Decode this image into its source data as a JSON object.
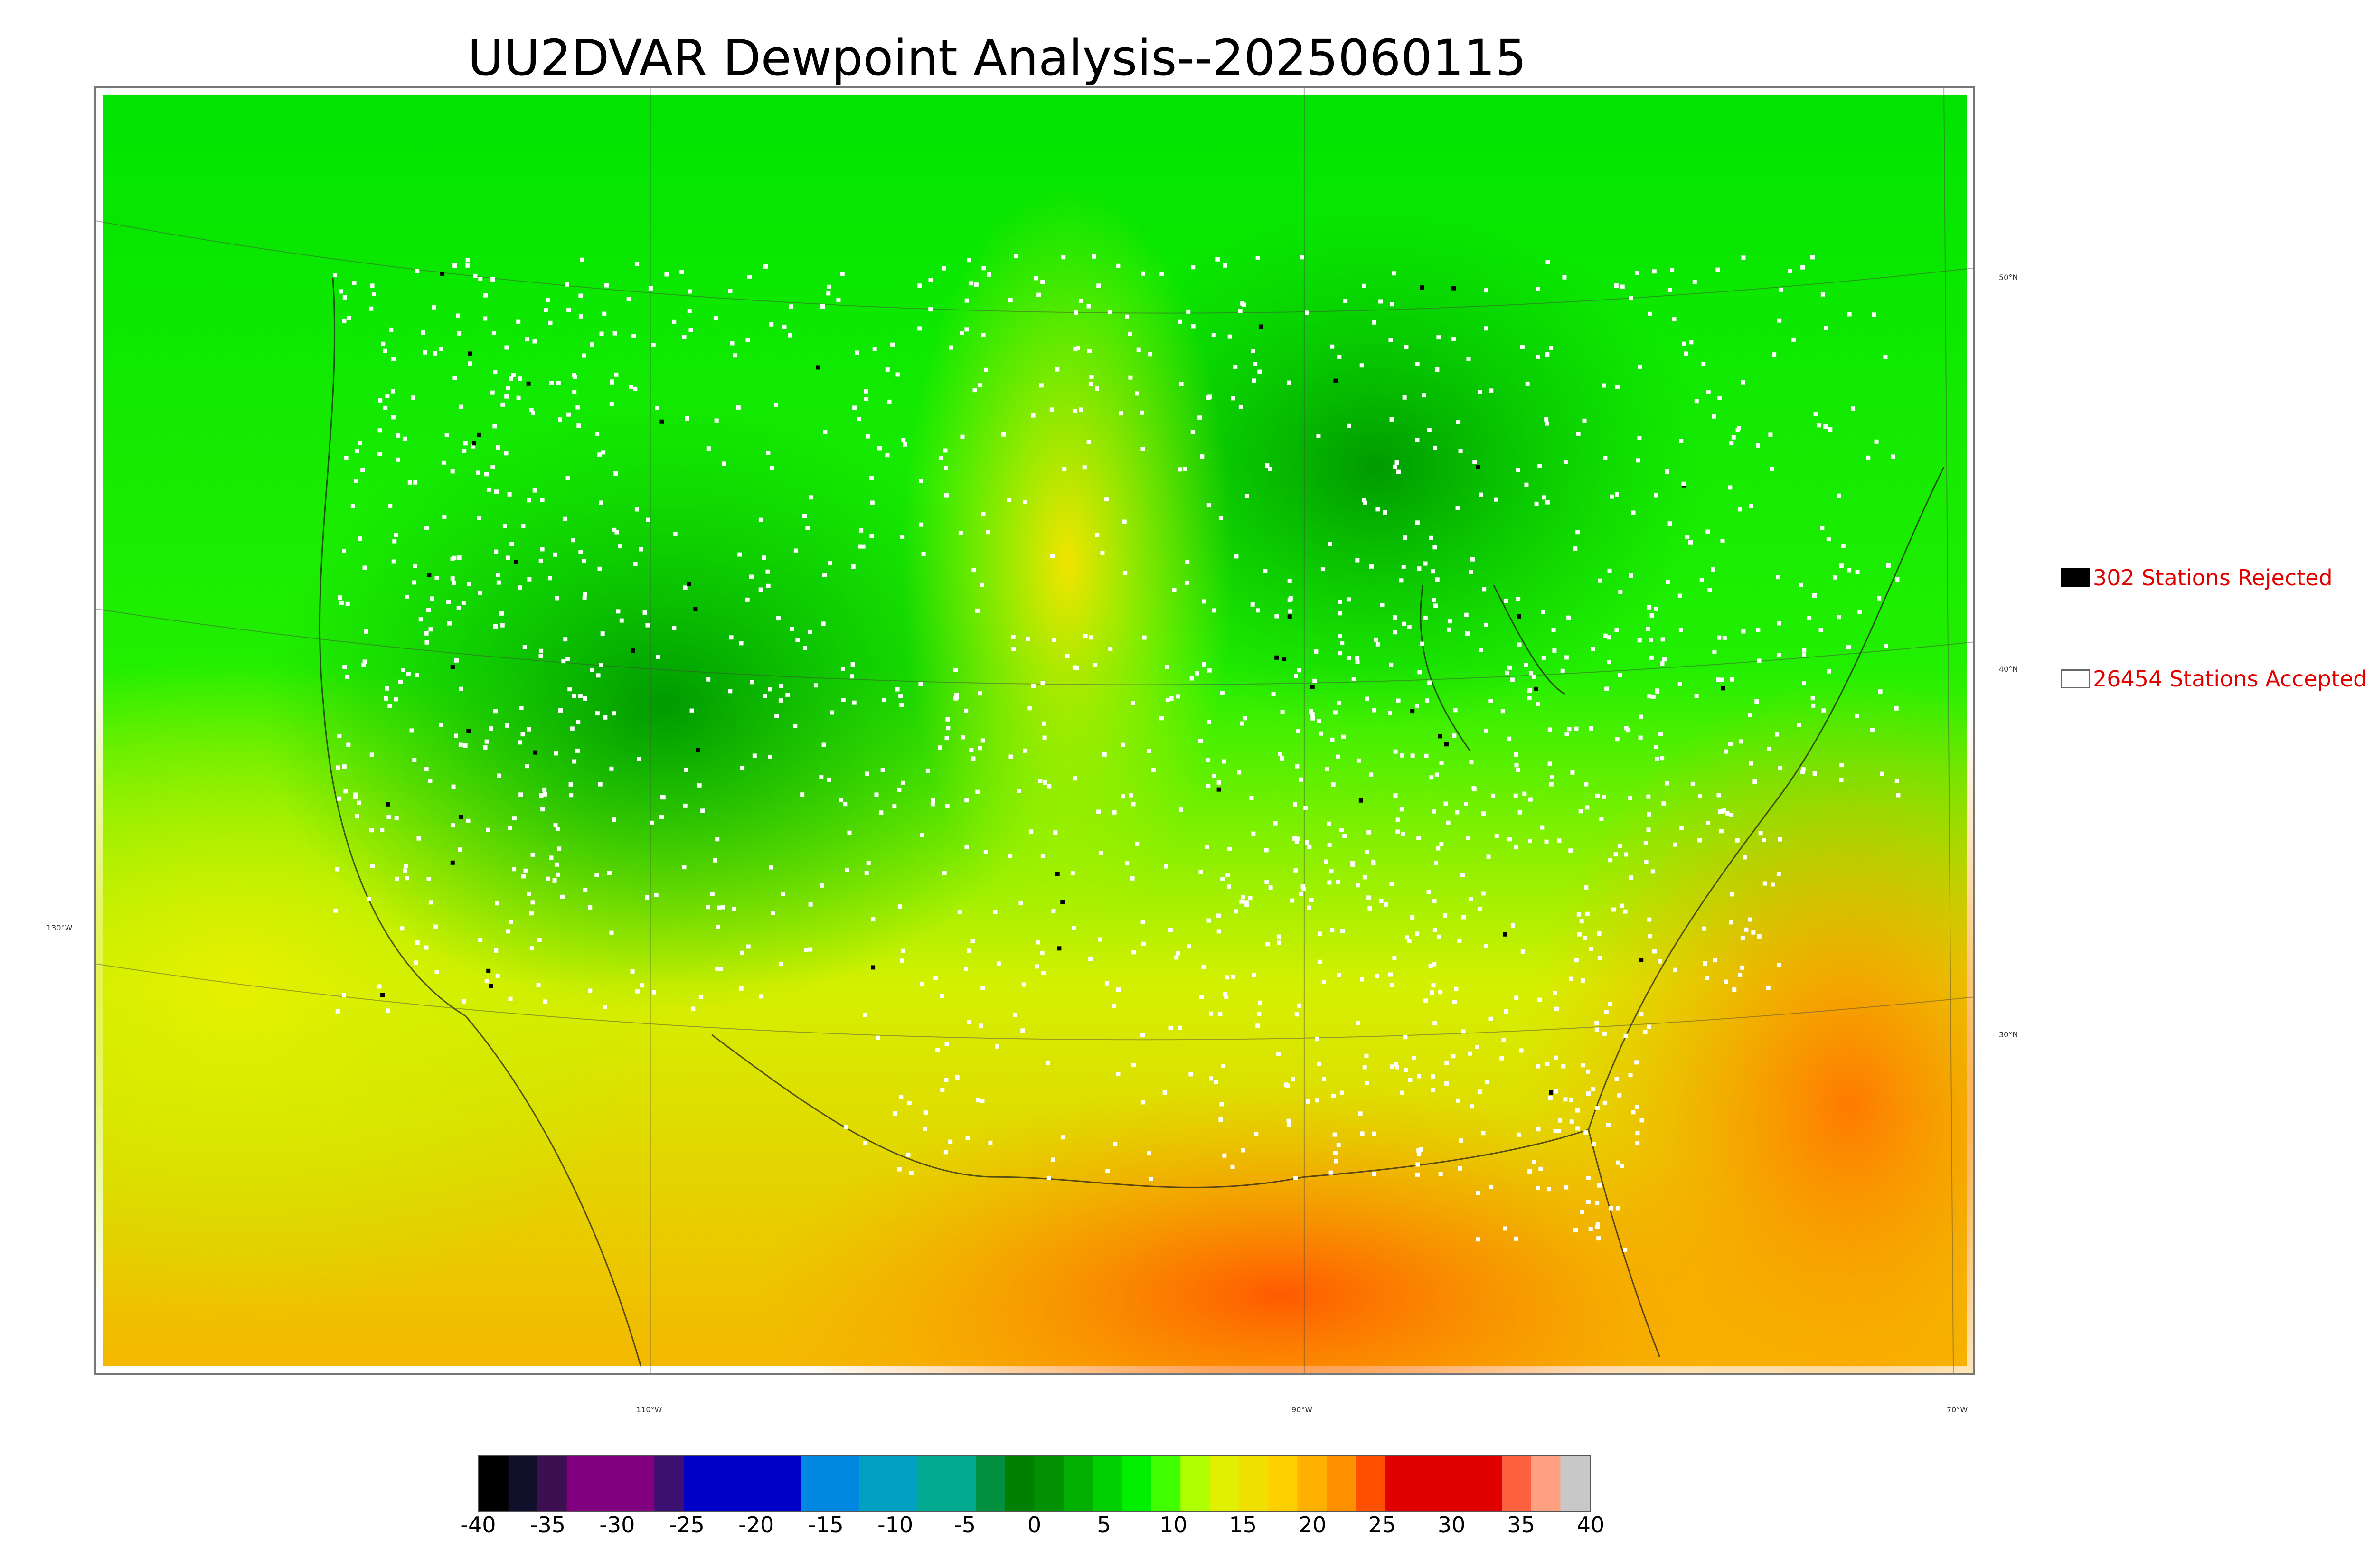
{
  "title": "UU2DVAR Dewpoint Analysis--2025060115",
  "map": {
    "lat_labels": [
      "50°N",
      "40°N",
      "30°N"
    ],
    "lon_labels": [
      "130°W",
      "110°W",
      "90°W",
      "70°W"
    ]
  },
  "legend": {
    "rejected": "302 Stations Rejected",
    "accepted": "26454 Stations Accepted",
    "rejected_color": "#000000",
    "accepted_color": "#ffffff",
    "text_color": "#e00000"
  },
  "colorbar": {
    "ticks": [
      "-40",
      "-35",
      "-30",
      "-25",
      "-20",
      "-15",
      "-10",
      "-5",
      "0",
      "5",
      "10",
      "15",
      "20",
      "25",
      "30",
      "35",
      "40"
    ],
    "colors": [
      "#000000",
      "#10102a",
      "#3c1050",
      "#800080",
      "#800080",
      "#800080",
      "#3c1070",
      "#0000c8",
      "#0000c8",
      "#0000c8",
      "#0000c8",
      "#0088e0",
      "#0088e0",
      "#00a0c0",
      "#00a0c0",
      "#00aa90",
      "#00aa90",
      "#009040",
      "#008000",
      "#009000",
      "#00b000",
      "#00d000",
      "#00f000",
      "#40ff00",
      "#b0ff00",
      "#e0f000",
      "#f0e000",
      "#ffd000",
      "#ffb000",
      "#ff9000",
      "#ff5000",
      "#e00000",
      "#e00000",
      "#e00000",
      "#e00000",
      "#ff6040",
      "#ffa080",
      "#c8c8c8"
    ]
  }
}
